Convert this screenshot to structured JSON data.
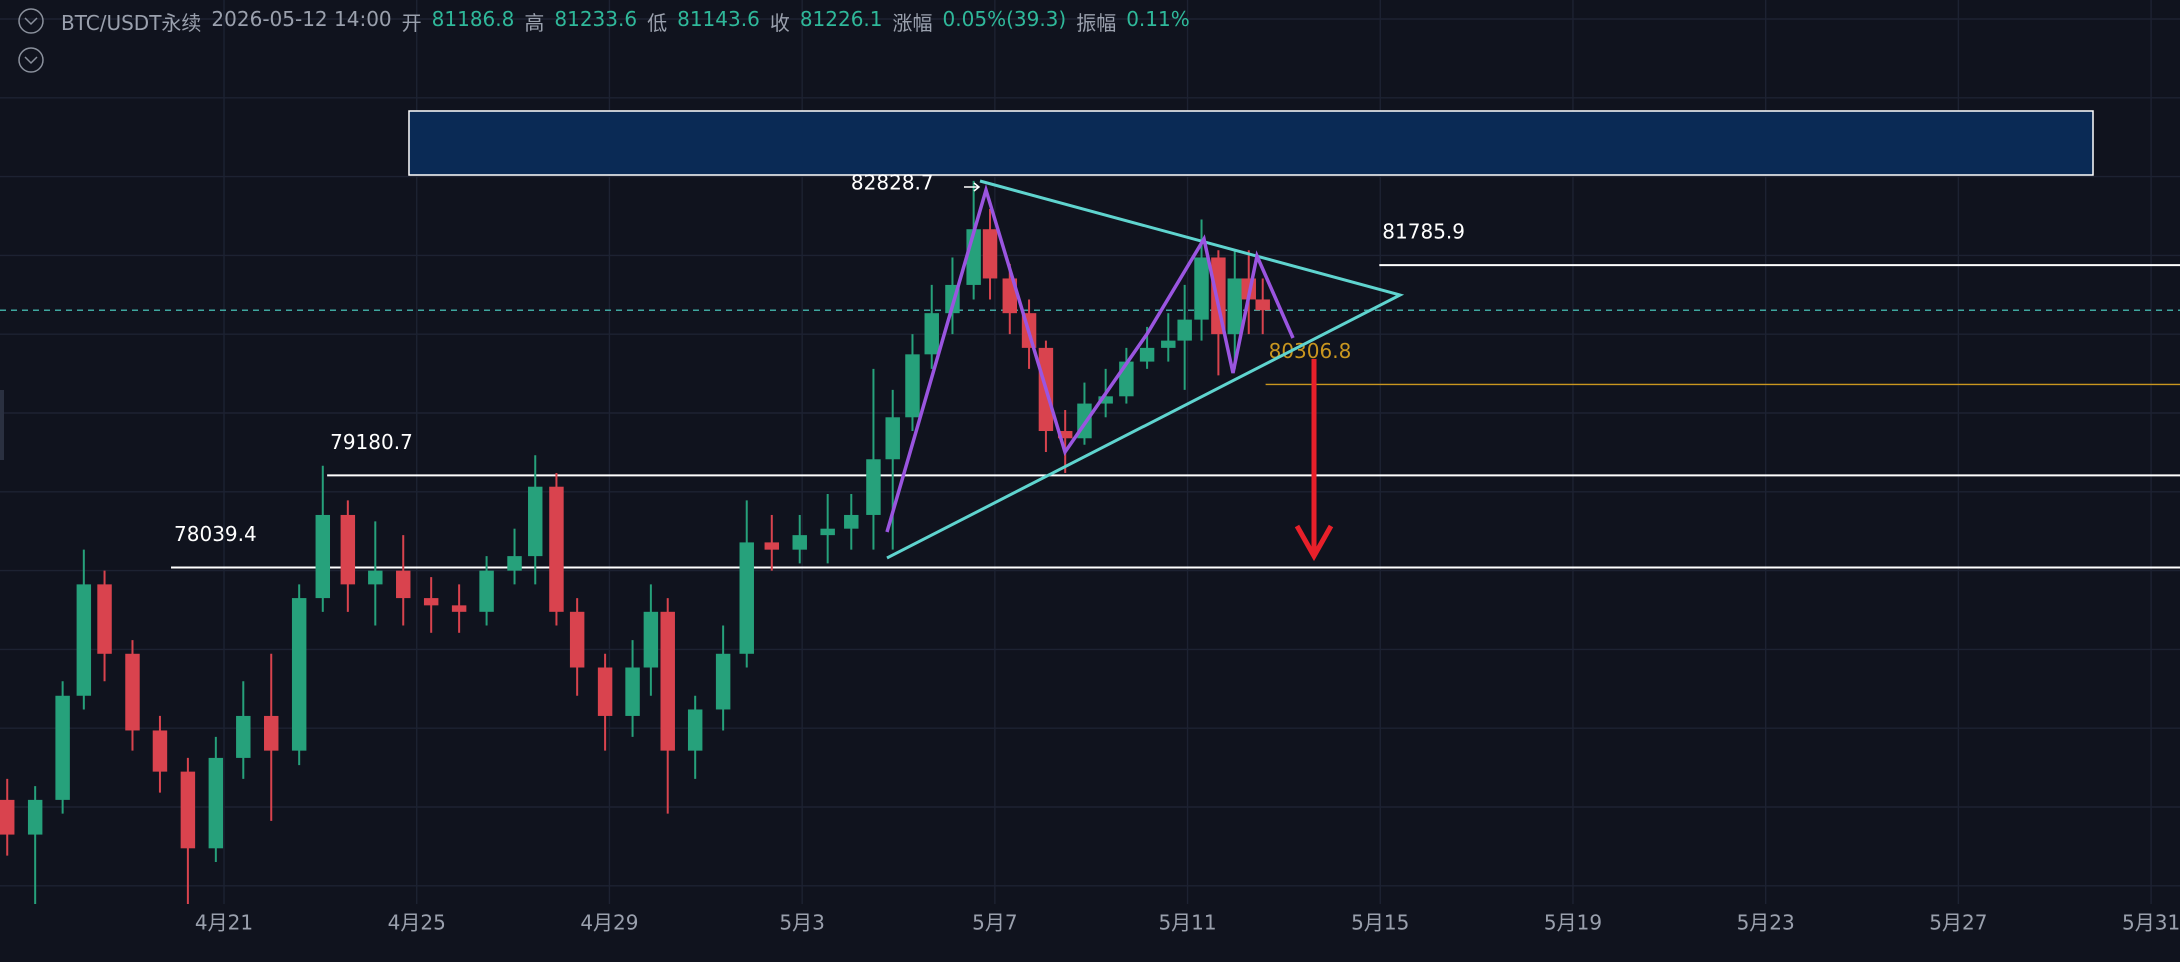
{
  "header": {
    "symbol": "BTC/USDT永续",
    "time": "2026-05-12 14:00",
    "fields": [
      {
        "label": "开",
        "value": "81186.8"
      },
      {
        "label": "高",
        "value": "81233.6"
      },
      {
        "label": "低",
        "value": "81143.6"
      },
      {
        "label": "收",
        "value": "81226.1"
      },
      {
        "label": "涨幅",
        "value": "0.05%(39.3)"
      },
      {
        "label": "振幅",
        "value": "0.11%"
      }
    ]
  },
  "chart_data": {
    "type": "candlestick",
    "xlim": [
      -4.65,
      40.6
    ],
    "ylim": [
      73870,
      85070
    ],
    "xticks": [
      {
        "value": 0,
        "label": "4月21"
      },
      {
        "value": 4,
        "label": "4月25"
      },
      {
        "value": 8,
        "label": "4月29"
      },
      {
        "value": 12,
        "label": "5月3"
      },
      {
        "value": 16,
        "label": "5月7"
      },
      {
        "value": 20,
        "label": "5月11"
      },
      {
        "value": 24,
        "label": "5月15"
      },
      {
        "value": 28,
        "label": "5月19"
      },
      {
        "value": 32,
        "label": "5月23"
      },
      {
        "value": 36,
        "label": "5月27"
      },
      {
        "value": 40,
        "label": "5月31"
      }
    ],
    "grid": true,
    "up_color": "#26a17b",
    "down_color": "#d9434e",
    "candles": {
      "x": [
        -4.5,
        -3.92,
        -3.35,
        -2.91,
        -2.48,
        -1.9,
        -1.33,
        -0.75,
        -0.17,
        0.4,
        0.98,
        1.56,
        2.05,
        2.57,
        3.14,
        3.72,
        4.3,
        4.88,
        5.45,
        6.03,
        6.46,
        6.9,
        7.33,
        7.91,
        8.48,
        8.86,
        9.21,
        9.78,
        10.36,
        10.85,
        11.37,
        11.95,
        12.53,
        13.02,
        13.48,
        13.88,
        14.29,
        14.69,
        15.12,
        15.56,
        15.9,
        16.31,
        16.71,
        17.06,
        17.46,
        17.86,
        18.3,
        18.73,
        19.16,
        19.6,
        19.94,
        20.29,
        20.64,
        20.98,
        21.27,
        21.56
      ],
      "open": [
        75160,
        74730,
        75160,
        76450,
        77830,
        76970,
        76020,
        75510,
        74560,
        75680,
        76200,
        75770,
        77660,
        78690,
        77830,
        78000,
        77660,
        77570,
        77490,
        78000,
        78180,
        79040,
        77490,
        76800,
        76200,
        76800,
        77490,
        75770,
        76280,
        76970,
        78350,
        78260,
        78440,
        78520,
        78690,
        79380,
        79900,
        80680,
        81190,
        81540,
        82230,
        81620,
        81190,
        80760,
        79730,
        79640,
        80070,
        80160,
        80590,
        80760,
        80850,
        81110,
        81880,
        80930,
        81620,
        81360
      ],
      "close": [
        74730,
        75160,
        76450,
        77830,
        76970,
        76020,
        75510,
        74560,
        75680,
        76200,
        75770,
        77660,
        78690,
        77830,
        78000,
        77660,
        77570,
        77490,
        78000,
        78180,
        79040,
        77490,
        76800,
        76200,
        76800,
        77490,
        75770,
        76280,
        76970,
        78350,
        78260,
        78440,
        78520,
        78690,
        79380,
        79900,
        80680,
        81190,
        81540,
        82230,
        81620,
        81190,
        80760,
        79730,
        79640,
        80070,
        80160,
        80590,
        80760,
        80850,
        81110,
        81880,
        80930,
        81620,
        81360,
        81226.1
      ],
      "high": [
        75420,
        75330,
        76630,
        78260,
        78000,
        77140,
        76200,
        75680,
        75940,
        76630,
        76970,
        77830,
        79300,
        78870,
        78610,
        78440,
        77920,
        77830,
        78180,
        78520,
        79430,
        79210,
        77660,
        76970,
        77140,
        77830,
        77660,
        76450,
        77320,
        78870,
        78690,
        78690,
        78950,
        78950,
        80500,
        80240,
        80930,
        81540,
        81880,
        82828.7,
        82480,
        81800,
        81360,
        80850,
        79990,
        80330,
        80500,
        80760,
        81020,
        81190,
        81540,
        82350,
        81970,
        81970,
        81970,
        81620
      ],
      "low": [
        74470,
        73870,
        74990,
        76280,
        76630,
        75770,
        75250,
        73870,
        74390,
        75420,
        74900,
        75590,
        77490,
        77490,
        77320,
        77320,
        77230,
        77230,
        77320,
        77830,
        77830,
        77320,
        76450,
        75770,
        75940,
        76450,
        74990,
        75420,
        76020,
        76800,
        78000,
        78090,
        78090,
        78260,
        78260,
        78260,
        79730,
        80500,
        80930,
        81360,
        81360,
        80930,
        80500,
        79470,
        79210,
        79560,
        79900,
        80070,
        80500,
        80590,
        80240,
        80850,
        80420,
        80500,
        80930,
        80930
      ]
    },
    "high_label": {
      "value": 82828.7,
      "x": 15.56
    },
    "price_lines": [
      {
        "value": 81785.9,
        "from": 23.98,
        "color": "#ffffff"
      },
      {
        "value": 79180.7,
        "from": 2.14,
        "color": "#ffffff"
      },
      {
        "value": 78039.4,
        "from": -1.1,
        "color": "#ffffff"
      },
      {
        "value": 80306.8,
        "from": 21.62,
        "color": "#c9961f"
      }
    ]
  }
}
